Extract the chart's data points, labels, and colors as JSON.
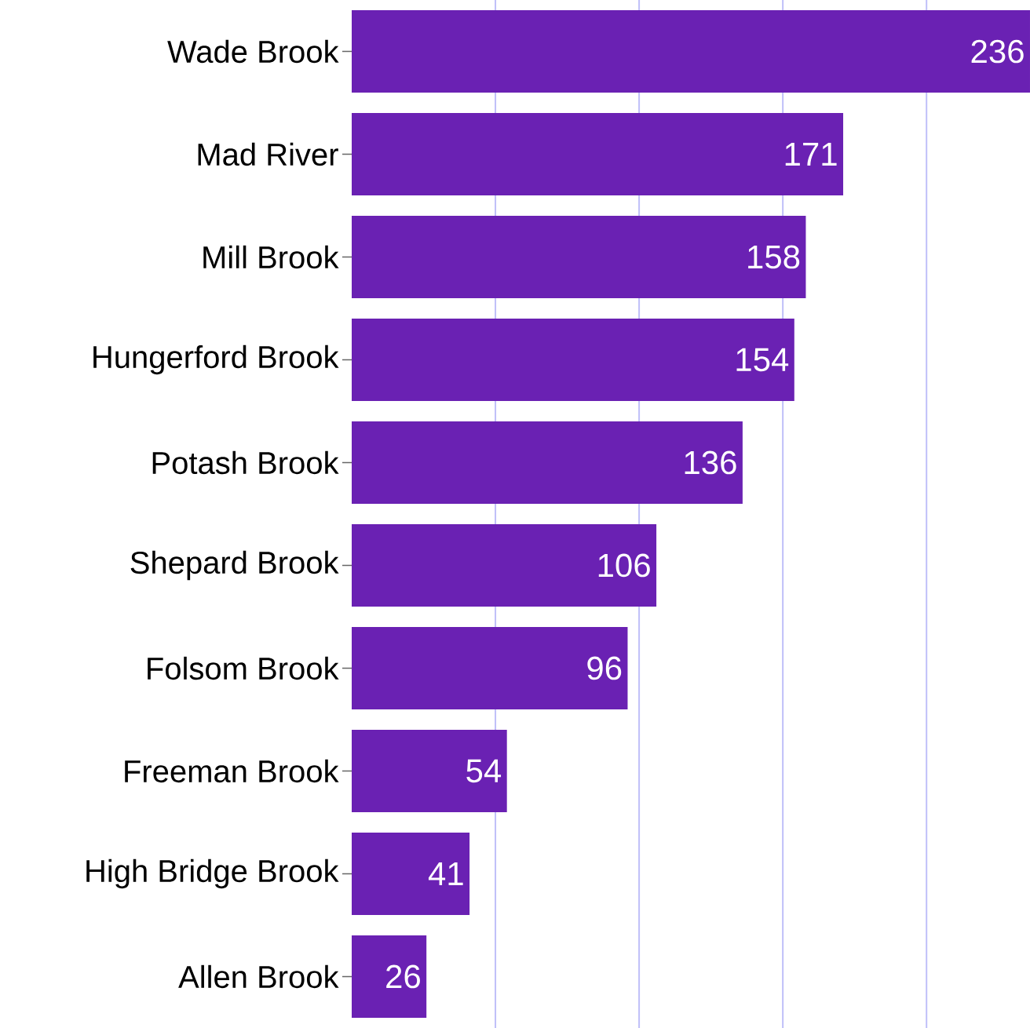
{
  "chart_data": {
    "type": "bar",
    "orientation": "horizontal",
    "categories": [
      "Wade Brook",
      "Mad River",
      "Mill Brook",
      "Hungerford Brook",
      "Potash Brook",
      "Shepard Brook",
      "Folsom Brook",
      "Freeman Brook",
      "High Bridge Brook",
      "Allen Brook"
    ],
    "values": [
      236,
      171,
      158,
      154,
      136,
      106,
      96,
      54,
      41,
      26
    ],
    "color": "#6a21b3",
    "xlim": [
      0,
      236
    ],
    "xticks": [
      {
        "value": 50,
        "label": null
      },
      {
        "value": 100,
        "label": null
      },
      {
        "value": 150,
        "label": null
      },
      {
        "value": 200,
        "label": null
      }
    ],
    "grid": "x",
    "data_labels": true
  }
}
